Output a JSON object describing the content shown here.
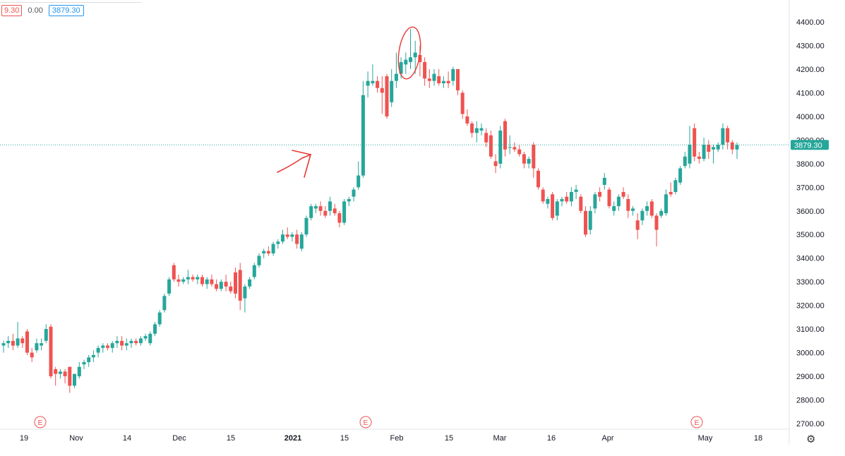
{
  "toolbar": {
    "change_value": "9.30",
    "zero_value": "0.00",
    "last_price": "3879.30"
  },
  "axis": {
    "price_labels": [
      "4400.00",
      "4300.00",
      "4200.00",
      "4100.00",
      "4000.00",
      "3900.00",
      "3800.00",
      "3700.00",
      "3600.00",
      "3500.00",
      "3400.00",
      "3300.00",
      "3200.00",
      "3100.00",
      "3000.00",
      "2900.00",
      "2800.00",
      "2700.00"
    ],
    "last_price_label": "3879.30",
    "date_labels": [
      "19",
      "Nov",
      "14",
      "Dec",
      "15",
      "2021",
      "15",
      "Feb",
      "15",
      "Mar",
      "16",
      "Apr",
      "May",
      "18"
    ]
  },
  "earnings_markers": [
    "E",
    "E",
    "E"
  ],
  "colors": {
    "up": "#26a69a",
    "down": "#ef5350",
    "price_line": "#26a69a",
    "annotation": "#e53935"
  },
  "chart_data": {
    "type": "candlestick",
    "ylim": [
      2700,
      4400
    ],
    "last_price": 3879.3,
    "candles": [
      [
        3030,
        3050,
        3000,
        3040
      ],
      [
        3040,
        3070,
        3020,
        3050
      ],
      [
        3050,
        3080,
        3010,
        3030
      ],
      [
        3030,
        3130,
        3020,
        3060
      ],
      [
        3060,
        3070,
        3020,
        3040
      ],
      [
        3090,
        3100,
        2990,
        3000
      ],
      [
        3000,
        3020,
        2960,
        2980
      ],
      [
        3010,
        3060,
        3000,
        3040
      ],
      [
        3030,
        3060,
        3010,
        3040
      ],
      [
        3050,
        3120,
        3040,
        3100
      ],
      [
        3110,
        3120,
        2890,
        2900
      ],
      [
        2930,
        2940,
        2860,
        2910
      ],
      [
        2910,
        2930,
        2890,
        2920
      ],
      [
        2920,
        2930,
        2870,
        2900
      ],
      [
        2940,
        2940,
        2830,
        2860
      ],
      [
        2860,
        2910,
        2850,
        2910
      ],
      [
        2900,
        2960,
        2890,
        2940
      ],
      [
        2950,
        2970,
        2930,
        2960
      ],
      [
        2960,
        2990,
        2940,
        2980
      ],
      [
        2980,
        3010,
        2960,
        2990
      ],
      [
        3000,
        3030,
        2980,
        3020
      ],
      [
        3020,
        3040,
        3000,
        3030
      ],
      [
        3030,
        3040,
        3010,
        3020
      ],
      [
        3020,
        3050,
        3000,
        3040
      ],
      [
        3040,
        3070,
        3020,
        3050
      ],
      [
        3050,
        3070,
        3010,
        3030
      ],
      [
        3030,
        3060,
        3010,
        3040
      ],
      [
        3040,
        3060,
        3020,
        3050
      ],
      [
        3050,
        3060,
        3030,
        3040
      ],
      [
        3040,
        3070,
        3030,
        3060
      ],
      [
        3060,
        3080,
        3050,
        3070
      ],
      [
        3040,
        3090,
        3030,
        3080
      ],
      [
        3080,
        3130,
        3070,
        3120
      ],
      [
        3120,
        3180,
        3110,
        3170
      ],
      [
        3180,
        3250,
        3170,
        3240
      ],
      [
        3250,
        3320,
        3240,
        3310
      ],
      [
        3370,
        3380,
        3300,
        3310
      ],
      [
        3310,
        3330,
        3280,
        3300
      ],
      [
        3300,
        3320,
        3290,
        3310
      ],
      [
        3310,
        3350,
        3290,
        3320
      ],
      [
        3320,
        3330,
        3300,
        3310
      ],
      [
        3310,
        3330,
        3290,
        3320
      ],
      [
        3320,
        3330,
        3280,
        3290
      ],
      [
        3290,
        3320,
        3270,
        3310
      ],
      [
        3310,
        3330,
        3280,
        3290
      ],
      [
        3290,
        3310,
        3260,
        3270
      ],
      [
        3270,
        3310,
        3260,
        3300
      ],
      [
        3300,
        3330,
        3260,
        3280
      ],
      [
        3280,
        3300,
        3250,
        3260
      ],
      [
        3340,
        3360,
        3230,
        3250
      ],
      [
        3350,
        3380,
        3180,
        3220
      ],
      [
        3230,
        3290,
        3170,
        3280
      ],
      [
        3280,
        3320,
        3270,
        3310
      ],
      [
        3320,
        3380,
        3310,
        3370
      ],
      [
        3370,
        3420,
        3360,
        3410
      ],
      [
        3420,
        3440,
        3400,
        3430
      ],
      [
        3430,
        3450,
        3410,
        3420
      ],
      [
        3420,
        3470,
        3410,
        3460
      ],
      [
        3460,
        3480,
        3440,
        3470
      ],
      [
        3470,
        3520,
        3460,
        3500
      ],
      [
        3500,
        3530,
        3480,
        3490
      ],
      [
        3490,
        3510,
        3470,
        3500
      ],
      [
        3500,
        3520,
        3440,
        3460
      ],
      [
        3440,
        3510,
        3430,
        3500
      ],
      [
        3500,
        3580,
        3490,
        3570
      ],
      [
        3570,
        3630,
        3560,
        3620
      ],
      [
        3610,
        3630,
        3590,
        3620
      ],
      [
        3620,
        3640,
        3580,
        3600
      ],
      [
        3600,
        3620,
        3570,
        3580
      ],
      [
        3600,
        3660,
        3580,
        3640
      ],
      [
        3610,
        3630,
        3580,
        3590
      ],
      [
        3590,
        3600,
        3530,
        3550
      ],
      [
        3550,
        3650,
        3540,
        3640
      ],
      [
        3640,
        3660,
        3620,
        3650
      ],
      [
        3660,
        3700,
        3640,
        3690
      ],
      [
        3700,
        3810,
        3690,
        3750
      ],
      [
        3750,
        4150,
        3740,
        4090
      ],
      [
        4130,
        4190,
        4080,
        4150
      ],
      [
        4140,
        4220,
        4130,
        4150
      ],
      [
        4150,
        4170,
        4100,
        4120
      ],
      [
        4120,
        4170,
        4010,
        4100
      ],
      [
        4170,
        4180,
        3990,
        4000
      ],
      [
        4060,
        4200,
        4040,
        4150
      ],
      [
        4150,
        4270,
        4120,
        4180
      ],
      [
        4180,
        4250,
        4160,
        4230
      ],
      [
        4220,
        4270,
        4180,
        4240
      ],
      [
        4230,
        4370,
        4200,
        4250
      ],
      [
        4250,
        4320,
        4180,
        4270
      ],
      [
        4260,
        4300,
        4170,
        4230
      ],
      [
        4230,
        4250,
        4130,
        4160
      ],
      [
        4160,
        4200,
        4120,
        4150
      ],
      [
        4150,
        4200,
        4130,
        4180
      ],
      [
        4170,
        4200,
        4130,
        4140
      ],
      [
        4140,
        4170,
        4120,
        4150
      ],
      [
        4150,
        4190,
        4120,
        4140
      ],
      [
        4150,
        4210,
        4130,
        4200
      ],
      [
        4200,
        4200,
        4090,
        4110
      ],
      [
        4100,
        4110,
        3990,
        4010
      ],
      [
        4000,
        4030,
        3960,
        3970
      ],
      [
        3970,
        3980,
        3910,
        3930
      ],
      [
        3930,
        3980,
        3890,
        3950
      ],
      [
        3940,
        3970,
        3920,
        3950
      ],
      [
        3930,
        3950,
        3870,
        3890
      ],
      [
        3920,
        3940,
        3820,
        3830
      ],
      [
        3810,
        3840,
        3760,
        3790
      ],
      [
        3800,
        3960,
        3780,
        3940
      ],
      [
        3980,
        3990,
        3830,
        3860
      ],
      [
        3870,
        3920,
        3840,
        3870
      ],
      [
        3870,
        3890,
        3850,
        3860
      ],
      [
        3860,
        3880,
        3830,
        3840
      ],
      [
        3840,
        3850,
        3780,
        3800
      ],
      [
        3800,
        3830,
        3780,
        3820
      ],
      [
        3880,
        3890,
        3740,
        3780
      ],
      [
        3770,
        3780,
        3690,
        3700
      ],
      [
        3690,
        3700,
        3630,
        3640
      ],
      [
        3630,
        3660,
        3610,
        3650
      ],
      [
        3670,
        3680,
        3560,
        3570
      ],
      [
        3580,
        3650,
        3560,
        3640
      ],
      [
        3640,
        3660,
        3620,
        3650
      ],
      [
        3660,
        3680,
        3630,
        3640
      ],
      [
        3640,
        3700,
        3620,
        3680
      ],
      [
        3680,
        3710,
        3650,
        3690
      ],
      [
        3660,
        3670,
        3590,
        3600
      ],
      [
        3600,
        3620,
        3490,
        3500
      ],
      [
        3520,
        3620,
        3500,
        3600
      ],
      [
        3610,
        3680,
        3590,
        3670
      ],
      [
        3680,
        3700,
        3640,
        3660
      ],
      [
        3710,
        3760,
        3690,
        3740
      ],
      [
        3690,
        3700,
        3610,
        3620
      ],
      [
        3600,
        3640,
        3580,
        3620
      ],
      [
        3620,
        3670,
        3600,
        3660
      ],
      [
        3680,
        3700,
        3650,
        3660
      ],
      [
        3650,
        3670,
        3570,
        3600
      ],
      [
        3600,
        3620,
        3580,
        3610
      ],
      [
        3560,
        3590,
        3480,
        3520
      ],
      [
        3560,
        3610,
        3540,
        3600
      ],
      [
        3600,
        3640,
        3580,
        3620
      ],
      [
        3640,
        3650,
        3570,
        3580
      ],
      [
        3580,
        3590,
        3450,
        3520
      ],
      [
        3580,
        3610,
        3570,
        3600
      ],
      [
        3590,
        3690,
        3580,
        3670
      ],
      [
        3680,
        3720,
        3660,
        3670
      ],
      [
        3680,
        3740,
        3670,
        3730
      ],
      [
        3720,
        3790,
        3710,
        3780
      ],
      [
        3790,
        3850,
        3780,
        3830
      ],
      [
        3800,
        3960,
        3780,
        3880
      ],
      [
        3950,
        3970,
        3810,
        3830
      ],
      [
        3830,
        3850,
        3800,
        3820
      ],
      [
        3820,
        3910,
        3810,
        3880
      ],
      [
        3880,
        3900,
        3820,
        3850
      ],
      [
        3860,
        3880,
        3800,
        3870
      ],
      [
        3860,
        3890,
        3850,
        3880
      ],
      [
        3880,
        3970,
        3860,
        3950
      ],
      [
        3950,
        3960,
        3860,
        3890
      ],
      [
        3890,
        3900,
        3840,
        3860
      ],
      [
        3860,
        3890,
        3820,
        3879.3
      ]
    ]
  }
}
